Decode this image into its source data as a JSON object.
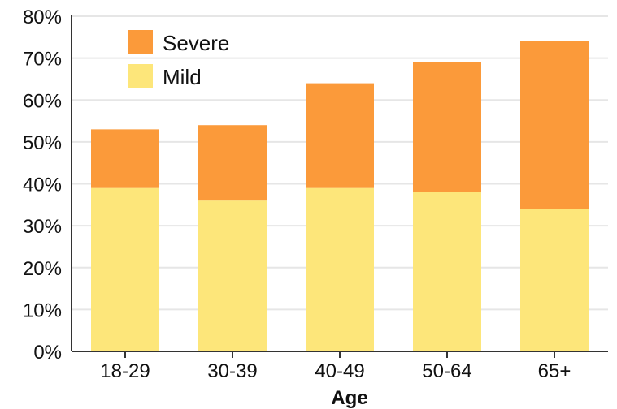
{
  "chart_data": {
    "type": "bar",
    "stacked": true,
    "categories": [
      "18-29",
      "30-39",
      "40-49",
      "50-64",
      "65+"
    ],
    "series": [
      {
        "name": "Mild",
        "color": "#fde67a",
        "values": [
          39,
          36,
          39,
          38,
          34
        ]
      },
      {
        "name": "Severe",
        "color": "#fb9a3a",
        "values": [
          14,
          18,
          25,
          31,
          40
        ]
      }
    ],
    "xlabel": "Age",
    "ylabel": "",
    "ylim": [
      0,
      80
    ],
    "yticks": [
      0,
      10,
      20,
      30,
      40,
      50,
      60,
      70,
      80
    ],
    "ytick_labels": [
      "0%",
      "10%",
      "20%",
      "30%",
      "40%",
      "50%",
      "60%",
      "70%",
      "80%"
    ],
    "grid": true,
    "legend": {
      "placement": "top-left",
      "entries": [
        "Severe",
        "Mild"
      ]
    }
  }
}
